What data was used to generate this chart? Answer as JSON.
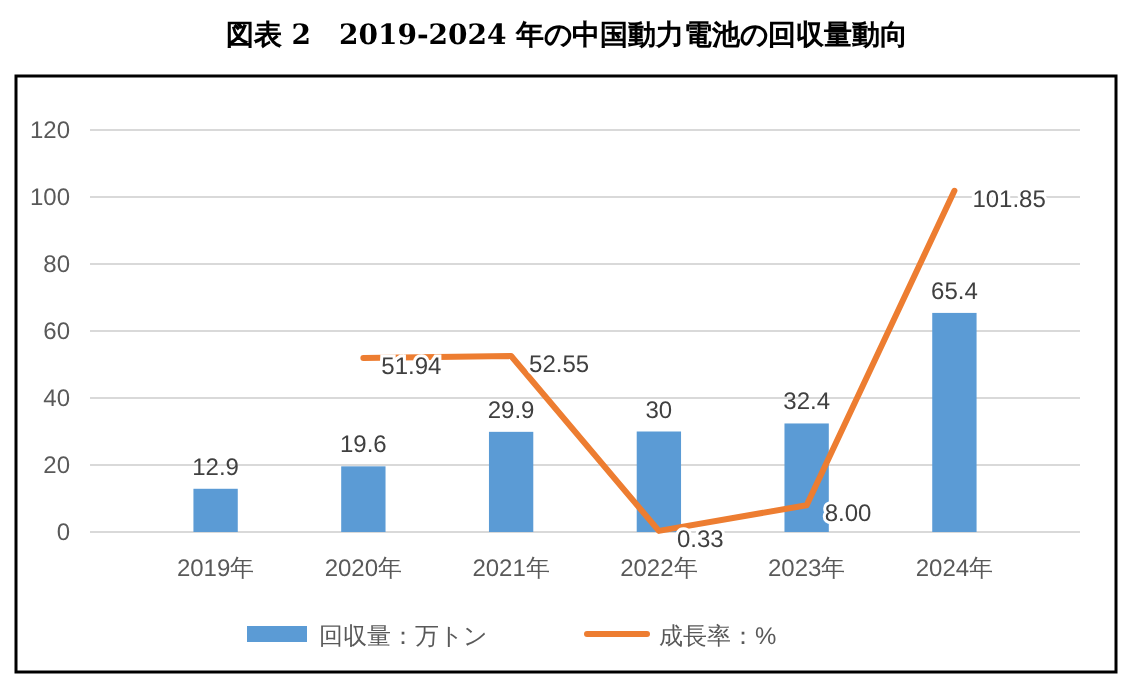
{
  "chart_data": {
    "type": "bar",
    "title": "図表 2　2019-2024 年の中国動力電池の回収量動向",
    "categories": [
      "2019年",
      "2020年",
      "2021年",
      "2022年",
      "2023年",
      "2024年"
    ],
    "series": [
      {
        "name": "回収量：万トン",
        "color": "#5b9bd5",
        "values": [
          12.9,
          19.6,
          29.9,
          30,
          32.4,
          65.4
        ],
        "value_labels": [
          "12.9",
          "19.6",
          "29.9",
          "30",
          "32.4",
          "65.4"
        ]
      },
      {
        "name": "成長率：%",
        "type": "line",
        "color": "#ed7d31",
        "values": [
          null,
          51.94,
          52.55,
          0.33,
          8.0,
          101.85
        ],
        "value_labels": [
          null,
          "51.94",
          "52.55",
          "0.33",
          "8.00",
          "101.85"
        ]
      }
    ],
    "ylim": [
      0,
      120
    ],
    "yticks": [
      0,
      20,
      40,
      60,
      80,
      100,
      120
    ],
    "grid": "y",
    "legend": "bottom",
    "line_style": "solid",
    "marker": "none"
  }
}
